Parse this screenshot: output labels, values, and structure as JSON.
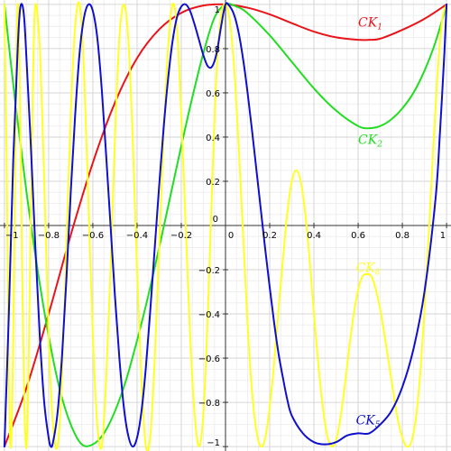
{
  "chart_data": {
    "type": "line",
    "title": "",
    "xlabel": "",
    "ylabel": "",
    "xlim": [
      -1.02,
      1.02
    ],
    "ylim": [
      -1.02,
      1.02
    ],
    "grid": true,
    "x_ticks": [
      -1,
      -0.8,
      -0.6,
      -0.4,
      -0.2,
      0,
      0.2,
      0.4,
      0.6,
      0.8,
      1
    ],
    "x_tick_labels": [
      "−1",
      "−0.8",
      "−0.6",
      "−0.4",
      "−0.2",
      "0",
      "0.2",
      "0.4",
      "0.6",
      "0.8",
      "1"
    ],
    "y_ticks": [
      -1,
      -0.8,
      -0.6,
      -0.4,
      -0.2,
      0,
      0.2,
      0.4,
      0.6,
      0.8,
      1
    ],
    "y_tick_labels": [
      "−1",
      "−0.8",
      "−0.6",
      "−0.4",
      "−0.2",
      "0",
      "0.2",
      "0.4",
      "0.6",
      "0.8",
      "1"
    ],
    "series": [
      {
        "name": "CK1",
        "label_main": "CK",
        "label_sub": "1",
        "color": "#e8141a",
        "label_at": [
          0.6,
          0.9
        ],
        "points": [
          [
            -1,
            -1
          ],
          [
            -0.9,
            -0.733
          ],
          [
            -0.8,
            -0.4
          ],
          [
            -0.7,
            -0.043
          ],
          [
            -0.6,
            0.284
          ],
          [
            -0.5,
            0.556
          ],
          [
            -0.4,
            0.757
          ],
          [
            -0.3,
            0.887
          ],
          [
            -0.2,
            0.962
          ],
          [
            -0.1,
            0.995
          ],
          [
            0,
            1
          ],
          [
            0.1,
            0.985
          ],
          [
            0.2,
            0.955
          ],
          [
            0.3,
            0.915
          ],
          [
            0.4,
            0.877
          ],
          [
            0.5,
            0.851
          ],
          [
            0.6,
            0.84
          ],
          [
            0.65,
            0.84
          ],
          [
            0.7,
            0.845
          ],
          [
            0.8,
            0.885
          ],
          [
            0.9,
            0.935
          ],
          [
            1,
            1
          ]
        ]
      },
      {
        "name": "CK2",
        "label_main": "CK",
        "label_sub": "2",
        "color": "#22dd22",
        "label_at": [
          0.6,
          0.37
        ],
        "points": [
          [
            -1,
            1
          ],
          [
            -0.95,
            0.55
          ],
          [
            -0.9,
            0.15
          ],
          [
            -0.85,
            -0.2
          ],
          [
            -0.8,
            -0.5
          ],
          [
            -0.75,
            -0.74
          ],
          [
            -0.7,
            -0.9
          ],
          [
            -0.65,
            -0.99
          ],
          [
            -0.6,
            -0.99
          ],
          [
            -0.55,
            -0.94
          ],
          [
            -0.5,
            -0.84
          ],
          [
            -0.45,
            -0.7
          ],
          [
            -0.4,
            -0.52
          ],
          [
            -0.35,
            -0.32
          ],
          [
            -0.3,
            -0.1
          ],
          [
            -0.25,
            0.13
          ],
          [
            -0.2,
            0.36
          ],
          [
            -0.15,
            0.58
          ],
          [
            -0.1,
            0.78
          ],
          [
            -0.05,
            0.94
          ],
          [
            0,
            1
          ],
          [
            0.05,
            0.99
          ],
          [
            0.1,
            0.96
          ],
          [
            0.2,
            0.86
          ],
          [
            0.3,
            0.74
          ],
          [
            0.4,
            0.62
          ],
          [
            0.5,
            0.52
          ],
          [
            0.6,
            0.45
          ],
          [
            0.65,
            0.44
          ],
          [
            0.7,
            0.45
          ],
          [
            0.75,
            0.48
          ],
          [
            0.8,
            0.53
          ],
          [
            0.85,
            0.6
          ],
          [
            0.9,
            0.7
          ],
          [
            0.95,
            0.83
          ],
          [
            1,
            1
          ]
        ]
      },
      {
        "name": "CK8",
        "label_main": "CK",
        "label_sub": "8",
        "color": "#ffff22",
        "label_at": [
          0.59,
          -0.21
        ],
        "points": [
          [
            -1,
            1
          ],
          [
            -0.99,
            0.3
          ],
          [
            -0.98,
            -0.7
          ],
          [
            -0.97,
            -1
          ],
          [
            -0.96,
            -0.5
          ],
          [
            -0.95,
            0.4
          ],
          [
            -0.94,
            1
          ],
          [
            -0.93,
            0.6
          ],
          [
            -0.92,
            -0.2
          ],
          [
            -0.91,
            -0.8
          ],
          [
            -0.9,
            -1
          ],
          [
            -0.89,
            -0.6
          ],
          [
            -0.88,
            0.1
          ],
          [
            -0.87,
            0.7
          ],
          [
            -0.86,
            1
          ],
          [
            -0.84,
            0.8
          ],
          [
            -0.82,
            0.2
          ],
          [
            -0.8,
            -0.5
          ],
          [
            -0.78,
            -0.9
          ],
          [
            -0.76,
            -1
          ],
          [
            -0.74,
            -0.7
          ],
          [
            -0.72,
            -0.1
          ],
          [
            -0.7,
            0.5
          ],
          [
            -0.68,
            0.9
          ],
          [
            -0.66,
            1
          ],
          [
            -0.64,
            0.7
          ],
          [
            -0.62,
            0.1
          ],
          [
            -0.6,
            -0.5
          ],
          [
            -0.58,
            -0.9
          ],
          [
            -0.56,
            -1
          ],
          [
            -0.54,
            -0.7
          ],
          [
            -0.52,
            -0.2
          ],
          [
            -0.5,
            0.4
          ],
          [
            -0.48,
            0.85
          ],
          [
            -0.46,
            1
          ],
          [
            -0.44,
            0.85
          ],
          [
            -0.42,
            0.4
          ],
          [
            -0.4,
            -0.2
          ],
          [
            -0.38,
            -0.7
          ],
          [
            -0.36,
            -1
          ],
          [
            -0.34,
            -0.95
          ],
          [
            -0.32,
            -0.6
          ],
          [
            -0.3,
            -0.1
          ],
          [
            -0.28,
            0.4
          ],
          [
            -0.26,
            0.8
          ],
          [
            -0.24,
            1
          ],
          [
            -0.22,
            0.9
          ],
          [
            -0.2,
            0.5
          ],
          [
            -0.18,
            0
          ],
          [
            -0.16,
            -0.5
          ],
          [
            -0.14,
            -0.85
          ],
          [
            -0.12,
            -1
          ],
          [
            -0.1,
            -0.85
          ],
          [
            -0.08,
            -0.4
          ],
          [
            -0.06,
            0.2
          ],
          [
            -0.04,
            0.7
          ],
          [
            -0.02,
            0.95
          ],
          [
            0,
            1
          ],
          [
            0.02,
            0.92
          ],
          [
            0.04,
            0.7
          ],
          [
            0.06,
            0.35
          ],
          [
            0.08,
            -0.05
          ],
          [
            0.1,
            -0.45
          ],
          [
            0.12,
            -0.75
          ],
          [
            0.14,
            -0.93
          ],
          [
            0.16,
            -1
          ],
          [
            0.18,
            -0.96
          ],
          [
            0.2,
            -0.82
          ],
          [
            0.22,
            -0.62
          ],
          [
            0.24,
            -0.38
          ],
          [
            0.26,
            -0.15
          ],
          [
            0.28,
            0.06
          ],
          [
            0.3,
            0.2
          ],
          [
            0.32,
            0.25
          ],
          [
            0.34,
            0.2
          ],
          [
            0.36,
            0.06
          ],
          [
            0.38,
            -0.15
          ],
          [
            0.4,
            -0.4
          ],
          [
            0.42,
            -0.63
          ],
          [
            0.44,
            -0.82
          ],
          [
            0.46,
            -0.95
          ],
          [
            0.48,
            -1
          ],
          [
            0.5,
            -0.97
          ],
          [
            0.52,
            -0.87
          ],
          [
            0.54,
            -0.72
          ],
          [
            0.56,
            -0.55
          ],
          [
            0.58,
            -0.4
          ],
          [
            0.6,
            -0.29
          ],
          [
            0.62,
            -0.23
          ],
          [
            0.64,
            -0.22
          ],
          [
            0.66,
            -0.23
          ],
          [
            0.68,
            -0.29
          ],
          [
            0.7,
            -0.38
          ],
          [
            0.72,
            -0.5
          ],
          [
            0.74,
            -0.63
          ],
          [
            0.76,
            -0.76
          ],
          [
            0.78,
            -0.88
          ],
          [
            0.8,
            -0.96
          ],
          [
            0.82,
            -1
          ],
          [
            0.84,
            -0.98
          ],
          [
            0.86,
            -0.88
          ],
          [
            0.88,
            -0.68
          ],
          [
            0.9,
            -0.38
          ],
          [
            0.92,
            -0.03
          ],
          [
            0.94,
            0.36
          ],
          [
            0.96,
            0.7
          ],
          [
            0.98,
            0.93
          ],
          [
            1,
            1
          ]
        ]
      },
      {
        "name": "CK5",
        "label_main": "CK",
        "label_sub": "5",
        "color": "#0f0fcc",
        "label_at": [
          0.59,
          -0.9
        ],
        "points": [
          [
            -1,
            -1
          ],
          [
            -0.98,
            -0.4
          ],
          [
            -0.96,
            0.3
          ],
          [
            -0.94,
            0.8
          ],
          [
            -0.93,
            0.97
          ],
          [
            -0.92,
            1
          ],
          [
            -0.91,
            0.93
          ],
          [
            -0.9,
            0.75
          ],
          [
            -0.88,
            0.35
          ],
          [
            -0.86,
            -0.1
          ],
          [
            -0.84,
            -0.5
          ],
          [
            -0.82,
            -0.8
          ],
          [
            -0.8,
            -0.96
          ],
          [
            -0.79,
            -1
          ],
          [
            -0.78,
            -0.98
          ],
          [
            -0.76,
            -0.85
          ],
          [
            -0.74,
            -0.6
          ],
          [
            -0.72,
            -0.25
          ],
          [
            -0.7,
            0.15
          ],
          [
            -0.68,
            0.5
          ],
          [
            -0.66,
            0.78
          ],
          [
            -0.64,
            0.94
          ],
          [
            -0.62,
            1
          ],
          [
            -0.6,
            0.97
          ],
          [
            -0.58,
            0.85
          ],
          [
            -0.56,
            0.62
          ],
          [
            -0.54,
            0.32
          ],
          [
            -0.52,
            0
          ],
          [
            -0.5,
            -0.32
          ],
          [
            -0.48,
            -0.6
          ],
          [
            -0.46,
            -0.82
          ],
          [
            -0.44,
            -0.95
          ],
          [
            -0.42,
            -1
          ],
          [
            -0.4,
            -0.96
          ],
          [
            -0.38,
            -0.84
          ],
          [
            -0.36,
            -0.64
          ],
          [
            -0.34,
            -0.38
          ],
          [
            -0.32,
            -0.1
          ],
          [
            -0.3,
            0.18
          ],
          [
            -0.28,
            0.44
          ],
          [
            -0.26,
            0.66
          ],
          [
            -0.24,
            0.83
          ],
          [
            -0.22,
            0.94
          ],
          [
            -0.2,
            0.99
          ],
          [
            -0.18,
            1
          ],
          [
            -0.16,
            0.97
          ],
          [
            -0.14,
            0.91
          ],
          [
            -0.12,
            0.84
          ],
          [
            -0.1,
            0.77
          ],
          [
            -0.08,
            0.72
          ],
          [
            -0.06,
            0.72
          ],
          [
            -0.04,
            0.78
          ],
          [
            -0.02,
            0.9
          ],
          [
            0,
            1
          ],
          [
            0.02,
            0.99
          ],
          [
            0.04,
            0.95
          ],
          [
            0.06,
            0.87
          ],
          [
            0.08,
            0.75
          ],
          [
            0.1,
            0.6
          ],
          [
            0.12,
            0.43
          ],
          [
            0.14,
            0.25
          ],
          [
            0.16,
            0.07
          ],
          [
            0.18,
            -0.11
          ],
          [
            0.2,
            -0.28
          ],
          [
            0.22,
            -0.44
          ],
          [
            0.24,
            -0.58
          ],
          [
            0.26,
            -0.69
          ],
          [
            0.28,
            -0.79
          ],
          [
            0.3,
            -0.86
          ],
          [
            0.35,
            -0.94
          ],
          [
            0.4,
            -0.98
          ],
          [
            0.45,
            -0.99
          ],
          [
            0.5,
            -0.98
          ],
          [
            0.55,
            -0.95
          ],
          [
            0.6,
            -0.94
          ],
          [
            0.65,
            -0.94
          ],
          [
            0.7,
            -0.9
          ],
          [
            0.75,
            -0.84
          ],
          [
            0.8,
            -0.73
          ],
          [
            0.85,
            -0.56
          ],
          [
            0.9,
            -0.3
          ],
          [
            0.95,
            0.12
          ],
          [
            0.97,
            0.42
          ],
          [
            0.99,
            0.78
          ],
          [
            1,
            1
          ]
        ]
      }
    ]
  }
}
